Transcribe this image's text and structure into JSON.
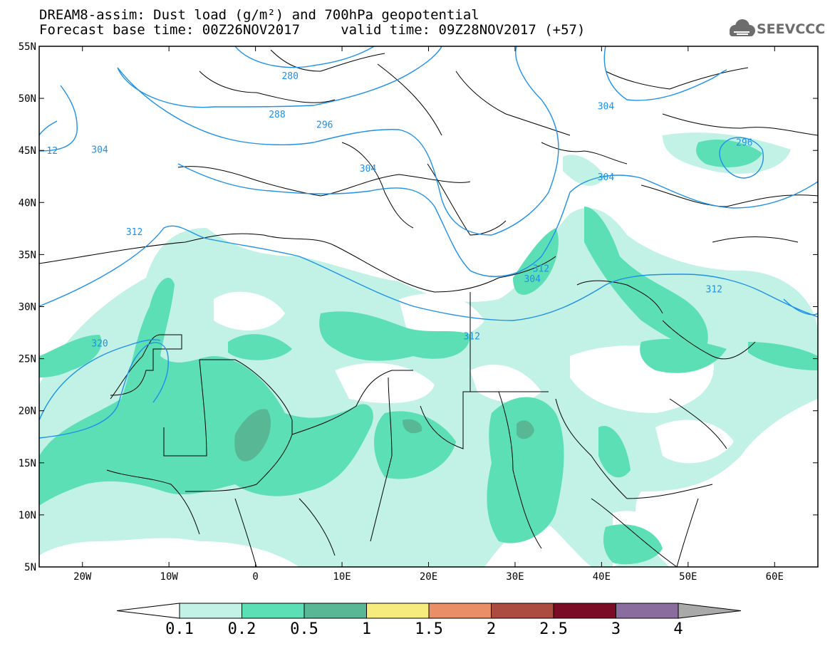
{
  "title": {
    "line1": "DREAM8-assim: Dust load (g/m²) and 700hPa geopotential",
    "line2": "Forecast base time: 00Z26NOV2017     valid time: 09Z28NOV2017 (+57)"
  },
  "logo": {
    "text": "SEEVCCC",
    "icon": "cloud-icon"
  },
  "map": {
    "lon_range": [
      -25,
      65
    ],
    "lat_range": [
      5,
      55
    ],
    "x_ticks": [
      {
        "lon": -20,
        "label": "20W"
      },
      {
        "lon": -10,
        "label": "10W"
      },
      {
        "lon": 0,
        "label": "0"
      },
      {
        "lon": 10,
        "label": "10E"
      },
      {
        "lon": 20,
        "label": "20E"
      },
      {
        "lon": 30,
        "label": "30E"
      },
      {
        "lon": 40,
        "label": "40E"
      },
      {
        "lon": 50,
        "label": "50E"
      },
      {
        "lon": 60,
        "label": "60E"
      }
    ],
    "y_ticks": [
      {
        "lat": 55,
        "label": "55N"
      },
      {
        "lat": 50,
        "label": "50N"
      },
      {
        "lat": 45,
        "label": "45N"
      },
      {
        "lat": 40,
        "label": "40N"
      },
      {
        "lat": 35,
        "label": "35N"
      },
      {
        "lat": 30,
        "label": "30N"
      },
      {
        "lat": 25,
        "label": "25N"
      },
      {
        "lat": 20,
        "label": "20N"
      },
      {
        "lat": 15,
        "label": "15N"
      },
      {
        "lat": 10,
        "label": "10N"
      },
      {
        "lat": 5,
        "label": "5N"
      }
    ],
    "contour_color": "#1e90e8",
    "contour_labels": [
      {
        "text": "280",
        "lon": 4,
        "lat": 52.2
      },
      {
        "text": "288",
        "lon": 2.5,
        "lat": 48.5
      },
      {
        "text": "296",
        "lon": 8,
        "lat": 47.5
      },
      {
        "text": "296",
        "lon": 56.5,
        "lat": 45.8
      },
      {
        "text": "304",
        "lon": 40.5,
        "lat": 49.3
      },
      {
        "text": "304",
        "lon": -18,
        "lat": 45.1
      },
      {
        "text": "304",
        "lon": 13,
        "lat": 43.3
      },
      {
        "text": "304",
        "lon": 40.5,
        "lat": 42.5
      },
      {
        "text": "304",
        "lon": 32,
        "lat": 32.7
      },
      {
        "text": "312",
        "lon": -14,
        "lat": 37.2
      },
      {
        "text": "312",
        "lon": 33,
        "lat": 33.7
      },
      {
        "text": "312",
        "lon": 53,
        "lat": 31.7
      },
      {
        "text": "312",
        "lon": 25,
        "lat": 27.2
      },
      {
        "text": "320",
        "lon": -18,
        "lat": 26.5
      },
      {
        "text": "12",
        "lon": -23.5,
        "lat": 45.0
      }
    ]
  },
  "colorbar": {
    "colors": [
      "#c2f2e6",
      "#5ddfb6",
      "#58b895",
      "#f5ec7d",
      "#e98e66",
      "#ac4b3f",
      "#7a0c25",
      "#8b6c9f"
    ],
    "under_color": "#ffffff",
    "over_color": "#a9a9a9",
    "labels": [
      "0.1",
      "0.2",
      "0.5",
      "1",
      "1.5",
      "2",
      "2.5",
      "3",
      "4"
    ]
  }
}
